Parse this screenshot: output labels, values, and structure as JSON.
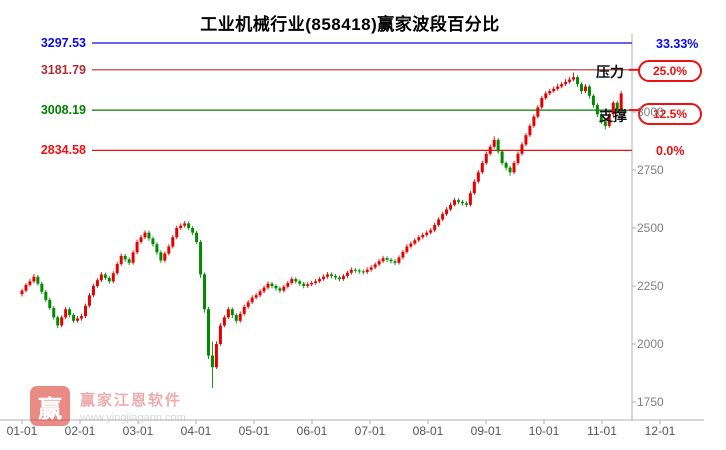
{
  "title": "工业机械行业(858418)赢家波段百分比",
  "callouts": {
    "pressure": {
      "label": "压力",
      "value": "25.0%"
    },
    "support": {
      "label": "支撑",
      "value": "12.5%"
    }
  },
  "watermark": {
    "logo_char": "赢",
    "brand": "赢家江恩软件",
    "url": "www.yingjiagann.com"
  },
  "chart_data": {
    "type": "candlestick",
    "title": "工业机械行业(858418)赢家波段百分比",
    "x_axis": {
      "labels": [
        "01-01",
        "02-01",
        "03-01",
        "04-01",
        "05-01",
        "06-01",
        "07-01",
        "08-01",
        "09-01",
        "10-01",
        "11-01",
        "12-01"
      ]
    },
    "y_axis": {
      "ticks": [
        3000,
        2750,
        2500,
        2250,
        2000,
        1750
      ],
      "range": [
        1700,
        3350
      ]
    },
    "levels": [
      {
        "price": 3297.53,
        "label": "3297.53",
        "pct": "33.33%",
        "color": "#0a0ae6"
      },
      {
        "price": 3181.79,
        "label": "3181.79",
        "pct": "25.0%",
        "color": "#b03030",
        "callout": "压力"
      },
      {
        "price": 3008.19,
        "label": "3008.19",
        "pct": "12.5%",
        "color": "#008000",
        "callout": "支撑"
      },
      {
        "price": 2834.58,
        "label": "2834.58",
        "pct": "0.0%",
        "color": "#ee1111"
      }
    ],
    "colors": {
      "up": "#e60000",
      "down": "#008a00",
      "axis": "#b0b0b0"
    },
    "candles": [
      [
        2215,
        2238,
        2205,
        2230
      ],
      [
        2230,
        2262,
        2222,
        2255
      ],
      [
        2255,
        2281,
        2247,
        2270
      ],
      [
        2270,
        2302,
        2262,
        2290
      ],
      [
        2290,
        2298,
        2252,
        2260
      ],
      [
        2260,
        2268,
        2215,
        2225
      ],
      [
        2225,
        2233,
        2180,
        2190
      ],
      [
        2190,
        2199,
        2146,
        2155
      ],
      [
        2155,
        2163,
        2105,
        2115
      ],
      [
        2115,
        2122,
        2068,
        2080
      ],
      [
        2080,
        2124,
        2072,
        2115
      ],
      [
        2115,
        2160,
        2107,
        2150
      ],
      [
        2150,
        2158,
        2115,
        2125
      ],
      [
        2125,
        2133,
        2090,
        2100
      ],
      [
        2100,
        2121,
        2092,
        2110
      ],
      [
        2110,
        2131,
        2100,
        2120
      ],
      [
        2120,
        2174,
        2112,
        2165
      ],
      [
        2165,
        2220,
        2157,
        2210
      ],
      [
        2210,
        2260,
        2202,
        2250
      ],
      [
        2250,
        2284,
        2242,
        2275
      ],
      [
        2275,
        2310,
        2267,
        2300
      ],
      [
        2300,
        2308,
        2276,
        2285
      ],
      [
        2285,
        2293,
        2260,
        2270
      ],
      [
        2270,
        2314,
        2262,
        2305
      ],
      [
        2305,
        2354,
        2297,
        2345
      ],
      [
        2345,
        2390,
        2337,
        2380
      ],
      [
        2380,
        2388,
        2355,
        2365
      ],
      [
        2365,
        2373,
        2340,
        2350
      ],
      [
        2350,
        2404,
        2342,
        2395
      ],
      [
        2395,
        2450,
        2387,
        2440
      ],
      [
        2440,
        2470,
        2432,
        2460
      ],
      [
        2460,
        2490,
        2452,
        2480
      ],
      [
        2480,
        2488,
        2445,
        2455
      ],
      [
        2455,
        2463,
        2420,
        2430
      ],
      [
        2430,
        2438,
        2385,
        2395
      ],
      [
        2395,
        2403,
        2350,
        2360
      ],
      [
        2360,
        2399,
        2352,
        2390
      ],
      [
        2390,
        2430,
        2382,
        2420
      ],
      [
        2420,
        2470,
        2412,
        2460
      ],
      [
        2460,
        2510,
        2452,
        2500
      ],
      [
        2500,
        2520,
        2492,
        2510
      ],
      [
        2510,
        2530,
        2502,
        2520
      ],
      [
        2520,
        2528,
        2490,
        2500
      ],
      [
        2500,
        2508,
        2470,
        2480
      ],
      [
        2480,
        2488,
        2430,
        2440
      ],
      [
        2440,
        2448,
        2285,
        2300
      ],
      [
        2300,
        2308,
        2135,
        2150
      ],
      [
        2150,
        2160,
        1935,
        1950
      ],
      [
        1950,
        2010,
        1810,
        1900
      ],
      [
        1900,
        2012,
        1892,
        2000
      ],
      [
        2000,
        2090,
        1992,
        2080
      ],
      [
        2080,
        2124,
        2072,
        2115
      ],
      [
        2115,
        2160,
        2107,
        2150
      ],
      [
        2150,
        2158,
        2112,
        2125
      ],
      [
        2125,
        2133,
        2088,
        2100
      ],
      [
        2100,
        2140,
        2092,
        2130
      ],
      [
        2130,
        2170,
        2122,
        2160
      ],
      [
        2160,
        2190,
        2152,
        2180
      ],
      [
        2180,
        2210,
        2172,
        2200
      ],
      [
        2200,
        2220,
        2192,
        2210
      ],
      [
        2210,
        2236,
        2202,
        2227
      ],
      [
        2227,
        2252,
        2219,
        2243
      ],
      [
        2243,
        2270,
        2235,
        2260
      ],
      [
        2260,
        2268,
        2240,
        2250
      ],
      [
        2250,
        2258,
        2230,
        2240
      ],
      [
        2240,
        2248,
        2220,
        2230
      ],
      [
        2230,
        2256,
        2222,
        2247
      ],
      [
        2247,
        2272,
        2239,
        2263
      ],
      [
        2263,
        2290,
        2255,
        2280
      ],
      [
        2280,
        2288,
        2260,
        2270
      ],
      [
        2270,
        2278,
        2250,
        2260
      ],
      [
        2260,
        2268,
        2240,
        2250
      ],
      [
        2250,
        2266,
        2242,
        2257
      ],
      [
        2257,
        2272,
        2249,
        2263
      ],
      [
        2263,
        2280,
        2255,
        2270
      ],
      [
        2270,
        2290,
        2262,
        2280
      ],
      [
        2280,
        2300,
        2272,
        2290
      ],
      [
        2290,
        2310,
        2282,
        2300
      ],
      [
        2300,
        2308,
        2283,
        2293
      ],
      [
        2293,
        2301,
        2277,
        2287
      ],
      [
        2287,
        2295,
        2270,
        2280
      ],
      [
        2280,
        2302,
        2272,
        2293
      ],
      [
        2293,
        2316,
        2285,
        2307
      ],
      [
        2307,
        2330,
        2299,
        2320
      ],
      [
        2320,
        2328,
        2307,
        2317
      ],
      [
        2317,
        2325,
        2303,
        2313
      ],
      [
        2313,
        2321,
        2300,
        2310
      ],
      [
        2310,
        2330,
        2302,
        2320
      ],
      [
        2320,
        2340,
        2312,
        2330
      ],
      [
        2330,
        2352,
        2322,
        2343
      ],
      [
        2343,
        2366,
        2335,
        2357
      ],
      [
        2357,
        2380,
        2349,
        2370
      ],
      [
        2370,
        2378,
        2353,
        2363
      ],
      [
        2363,
        2371,
        2347,
        2357
      ],
      [
        2357,
        2365,
        2340,
        2350
      ],
      [
        2350,
        2382,
        2342,
        2373
      ],
      [
        2373,
        2406,
        2365,
        2397
      ],
      [
        2397,
        2430,
        2389,
        2420
      ],
      [
        2420,
        2442,
        2412,
        2433
      ],
      [
        2433,
        2456,
        2425,
        2447
      ],
      [
        2447,
        2470,
        2439,
        2460
      ],
      [
        2460,
        2480,
        2452,
        2470
      ],
      [
        2470,
        2490,
        2462,
        2480
      ],
      [
        2480,
        2500,
        2472,
        2490
      ],
      [
        2490,
        2522,
        2482,
        2513
      ],
      [
        2513,
        2546,
        2505,
        2537
      ],
      [
        2537,
        2570,
        2529,
        2560
      ],
      [
        2560,
        2590,
        2552,
        2580
      ],
      [
        2580,
        2610,
        2572,
        2600
      ],
      [
        2600,
        2630,
        2592,
        2620
      ],
      [
        2620,
        2628,
        2603,
        2613
      ],
      [
        2613,
        2621,
        2597,
        2607
      ],
      [
        2607,
        2615,
        2590,
        2600
      ],
      [
        2600,
        2660,
        2592,
        2650
      ],
      [
        2650,
        2710,
        2642,
        2700
      ],
      [
        2700,
        2750,
        2692,
        2740
      ],
      [
        2740,
        2790,
        2732,
        2780
      ],
      [
        2780,
        2830,
        2772,
        2820
      ],
      [
        2820,
        2860,
        2812,
        2850
      ],
      [
        2850,
        2895,
        2842,
        2880
      ],
      [
        2880,
        2888,
        2820,
        2830
      ],
      [
        2830,
        2838,
        2770,
        2780
      ],
      [
        2780,
        2788,
        2748,
        2760
      ],
      [
        2760,
        2768,
        2725,
        2740
      ],
      [
        2740,
        2790,
        2732,
        2780
      ],
      [
        2780,
        2830,
        2772,
        2820
      ],
      [
        2820,
        2870,
        2812,
        2860
      ],
      [
        2860,
        2910,
        2852,
        2900
      ],
      [
        2900,
        2950,
        2892,
        2940
      ],
      [
        2940,
        2990,
        2932,
        2980
      ],
      [
        2980,
        3030,
        2972,
        3020
      ],
      [
        3020,
        3070,
        3012,
        3060
      ],
      [
        3060,
        3090,
        3052,
        3080
      ],
      [
        3080,
        3100,
        3072,
        3090
      ],
      [
        3090,
        3110,
        3082,
        3100
      ],
      [
        3100,
        3122,
        3092,
        3110
      ],
      [
        3110,
        3130,
        3102,
        3120
      ],
      [
        3120,
        3142,
        3112,
        3130
      ],
      [
        3130,
        3152,
        3122,
        3140
      ],
      [
        3140,
        3170,
        3132,
        3150
      ],
      [
        3150,
        3158,
        3108,
        3120
      ],
      [
        3120,
        3128,
        3078,
        3090
      ],
      [
        3090,
        3120,
        3082,
        3110
      ],
      [
        3110,
        3118,
        3058,
        3070
      ],
      [
        3070,
        3078,
        3018,
        3030
      ],
      [
        3030,
        3038,
        2978,
        2990
      ],
      [
        2990,
        2998,
        2948,
        2960
      ],
      [
        2960,
        2968,
        2925,
        2940
      ],
      [
        2940,
        2998,
        2932,
        2990
      ],
      [
        2990,
        3048,
        2982,
        3040
      ],
      [
        3040,
        3048,
        2998,
        3010
      ],
      [
        3010,
        3090,
        3002,
        3080
      ]
    ]
  }
}
